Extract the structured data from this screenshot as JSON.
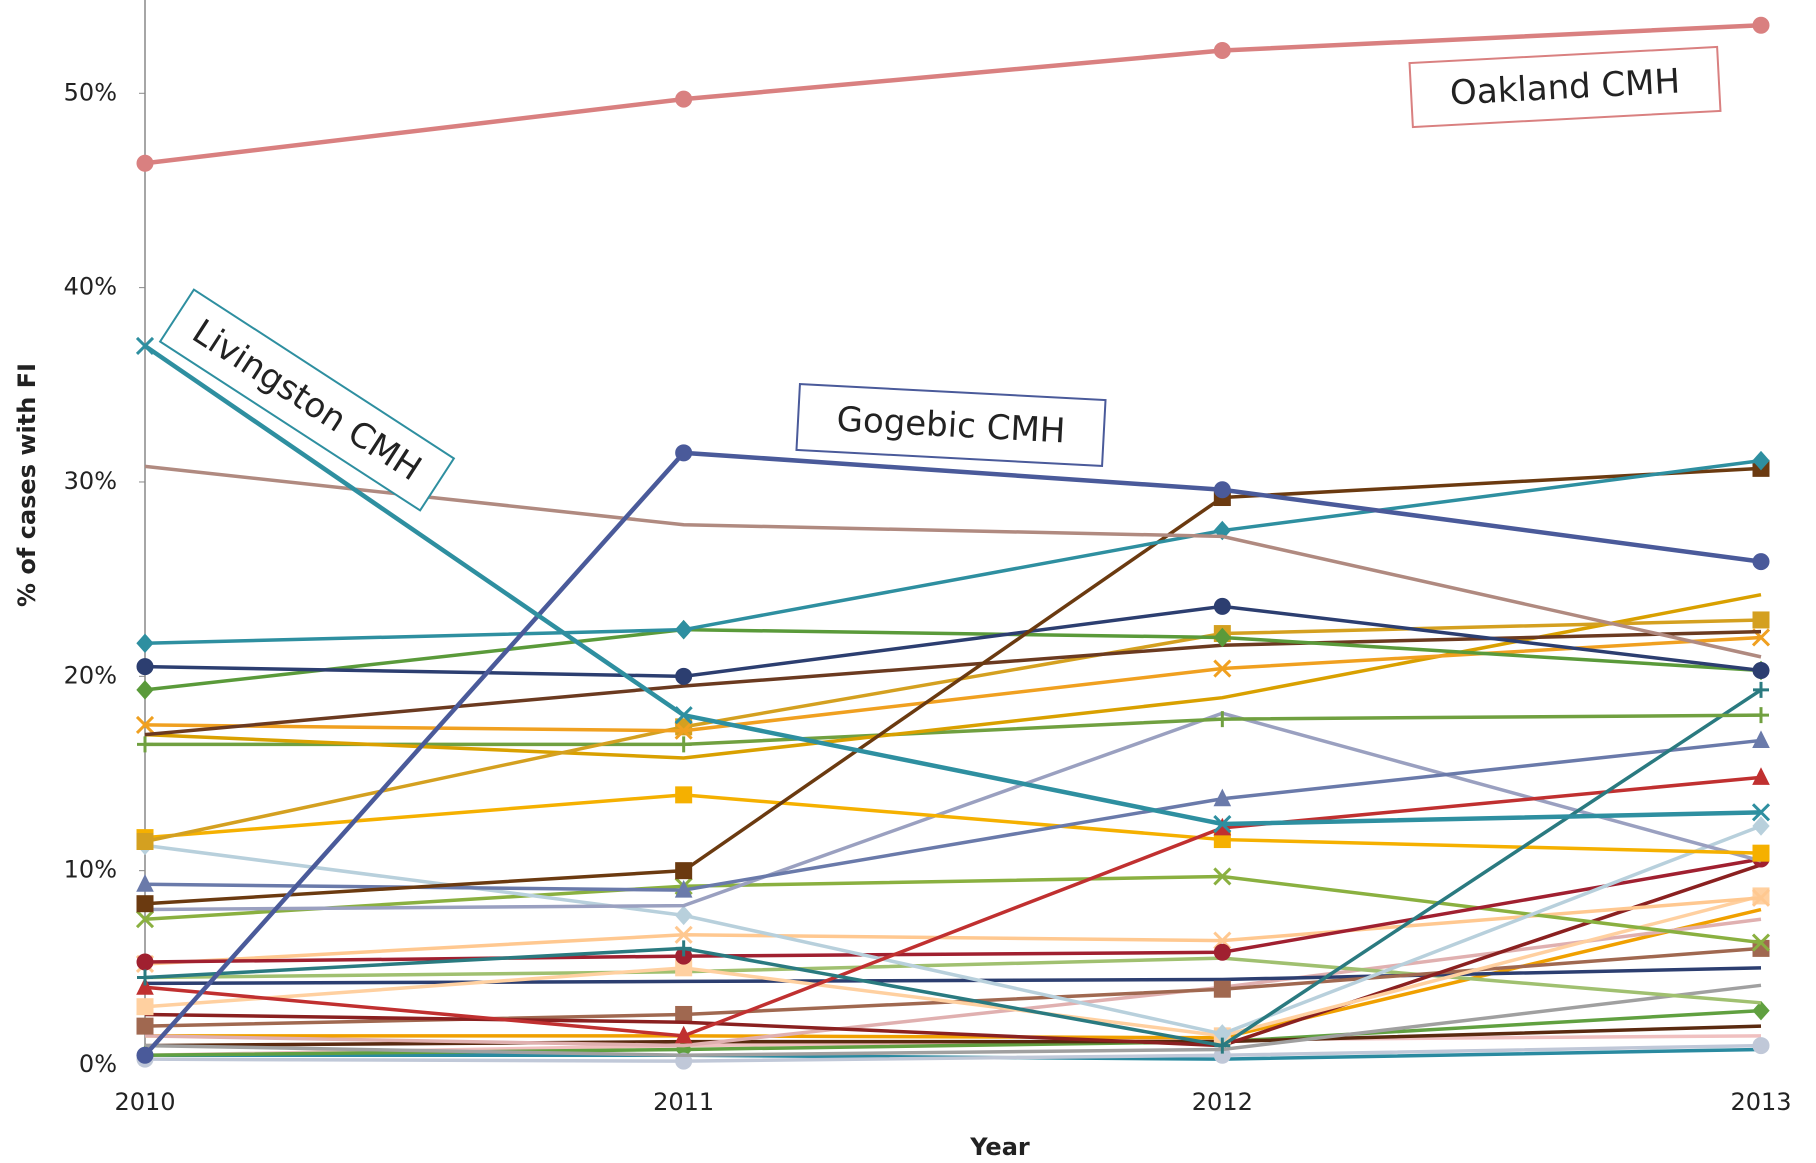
{
  "chart_data": {
    "type": "line",
    "x_label": "Year",
    "y_label": "% of cases with FI",
    "categories": [
      "2010",
      "2011",
      "2012",
      "2013"
    ],
    "ylim": [
      0,
      54.8
    ],
    "yticks": [
      {
        "value": 0,
        "label": "0%"
      },
      {
        "value": 10,
        "label": "10%"
      },
      {
        "value": 20,
        "label": "20%"
      },
      {
        "value": 30,
        "label": "30%"
      },
      {
        "value": 40,
        "label": "40%"
      },
      {
        "value": 50,
        "label": "50%"
      }
    ],
    "series": [
      {
        "name": "Oakland CMH",
        "color": "#d98080",
        "marker": "circle",
        "values": [
          46.4,
          49.7,
          52.2,
          53.5
        ]
      },
      {
        "name": "Livingston CMH",
        "color": "#2e8fa0",
        "marker": "x",
        "values": [
          37,
          18,
          12.4,
          13
        ]
      },
      {
        "name": "Gogebic CMH",
        "color": "#4a5a9a",
        "marker": "circle",
        "values": [
          0.5,
          31.5,
          29.6,
          25.9
        ]
      },
      {
        "color": "#b08a80",
        "marker": "none",
        "values": [
          30.8,
          27.8,
          27.2,
          21
        ]
      },
      {
        "color": "#2e8fa0",
        "marker": "diamond",
        "values": [
          21.7,
          22.4,
          27.5,
          31.1
        ]
      },
      {
        "color": "#6b3a10",
        "marker": "square",
        "values": [
          8.3,
          10,
          29.2,
          30.7
        ]
      },
      {
        "color": "#2c3e70",
        "marker": "circle",
        "values": [
          20.5,
          20,
          23.6,
          20.3
        ]
      },
      {
        "color": "#5a9a3a",
        "marker": "diamond",
        "values": [
          19.3,
          22.4,
          22,
          20.3
        ]
      },
      {
        "color": "#6b3a20",
        "marker": "none",
        "values": [
          17,
          19.5,
          21.6,
          22.3
        ]
      },
      {
        "color": "#f0a020",
        "marker": "x",
        "values": [
          17.5,
          17.2,
          20.4,
          22
        ]
      },
      {
        "color": "#d4a020",
        "marker": "square",
        "values": [
          11.5,
          17.4,
          22.2,
          22.9
        ]
      },
      {
        "color": "#d9a000",
        "marker": "none",
        "values": [
          17,
          15.8,
          18.9,
          24.2
        ]
      },
      {
        "color": "#70a040",
        "marker": "plus",
        "values": [
          16.5,
          16.5,
          17.8,
          18
        ]
      },
      {
        "color": "#2a7a80",
        "marker": "plus",
        "values": [
          4.5,
          6,
          1,
          19.3
        ]
      },
      {
        "color": "#6a7aaa",
        "marker": "triangle",
        "values": [
          9.3,
          9,
          13.7,
          16.7
        ]
      },
      {
        "color": "#c03030",
        "marker": "triangle",
        "values": [
          4,
          1.5,
          12.2,
          14.8
        ]
      },
      {
        "color": "#f5b000",
        "marker": "square",
        "values": [
          11.7,
          13.9,
          11.6,
          10.9
        ]
      },
      {
        "color": "#9aa0c0",
        "marker": "none",
        "values": [
          8,
          8.2,
          18.1,
          10.5
        ]
      },
      {
        "color": "#b8d0dc",
        "marker": "diamond",
        "values": [
          11.3,
          7.7,
          1.6,
          12.3
        ]
      },
      {
        "color": "#a02030",
        "marker": "circle",
        "values": [
          5.3,
          5.6,
          5.8,
          10.6
        ]
      },
      {
        "color": "#8ab040",
        "marker": "x",
        "values": [
          7.5,
          9.2,
          9.7,
          6.3
        ]
      },
      {
        "color": "#ffc890",
        "marker": "x",
        "values": [
          5.2,
          6.7,
          6.4,
          8.6
        ]
      },
      {
        "color": "#ffd0a0",
        "marker": "square",
        "values": [
          3,
          5,
          1.5,
          8.7
        ]
      },
      {
        "color": "#8a2020",
        "marker": "none",
        "values": [
          2.6,
          2.2,
          1,
          10.3
        ]
      },
      {
        "color": "#a06850",
        "marker": "square",
        "values": [
          2,
          2.6,
          3.9,
          6
        ]
      },
      {
        "color": "#2c3e70",
        "marker": "none",
        "values": [
          4.2,
          4.3,
          4.4,
          5
        ]
      },
      {
        "color": "#a0c070",
        "marker": "none",
        "values": [
          4.5,
          4.8,
          5.5,
          3.2
        ]
      },
      {
        "color": "#e0b0b0",
        "marker": "none",
        "values": [
          1.5,
          1,
          4,
          7.5
        ]
      },
      {
        "color": "#a0a0a0",
        "marker": "none",
        "values": [
          1,
          0.5,
          0.8,
          4.1
        ]
      },
      {
        "color": "#f0a000",
        "marker": "none",
        "values": [
          1.5,
          1.5,
          1.4,
          8
        ]
      },
      {
        "color": "#5a2a10",
        "marker": "none",
        "values": [
          1,
          1.2,
          1.2,
          2
        ]
      },
      {
        "color": "#c0c8d8",
        "marker": "circle",
        "values": [
          0.3,
          0.2,
          0.5,
          1
        ]
      },
      {
        "color": "#60a040",
        "marker": "diamond",
        "values": [
          0.5,
          0.8,
          1.2,
          2.8
        ]
      },
      {
        "color": "#f0c0c0",
        "marker": "none",
        "values": [
          0.5,
          1,
          1.3,
          1.5
        ]
      },
      {
        "color": "#2a8aa0",
        "marker": "none",
        "values": [
          0.5,
          0.5,
          0.3,
          0.8
        ]
      }
    ]
  }
}
